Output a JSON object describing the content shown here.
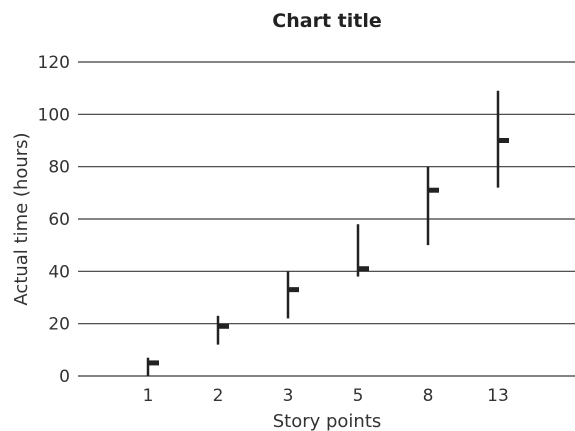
{
  "chart_data": {
    "type": "range",
    "title": "Chart title",
    "xlabel": "Story points",
    "ylabel": "Actual time (hours)",
    "categories": [
      "1",
      "2",
      "3",
      "5",
      "8",
      "13"
    ],
    "series": [
      {
        "low": [
          0,
          12,
          22,
          38,
          50,
          72
        ],
        "high": [
          7,
          23,
          40,
          58,
          80,
          109
        ],
        "mid": [
          5,
          19,
          33,
          41,
          71,
          90
        ]
      }
    ],
    "ylim": [
      0,
      120
    ],
    "yticks": [
      "0",
      "20",
      "40",
      "60",
      "80",
      "100",
      "120"
    ],
    "grid": true,
    "colors": {
      "marks": "#222222",
      "grid": "#3a3a3a",
      "text": "#333333"
    }
  }
}
